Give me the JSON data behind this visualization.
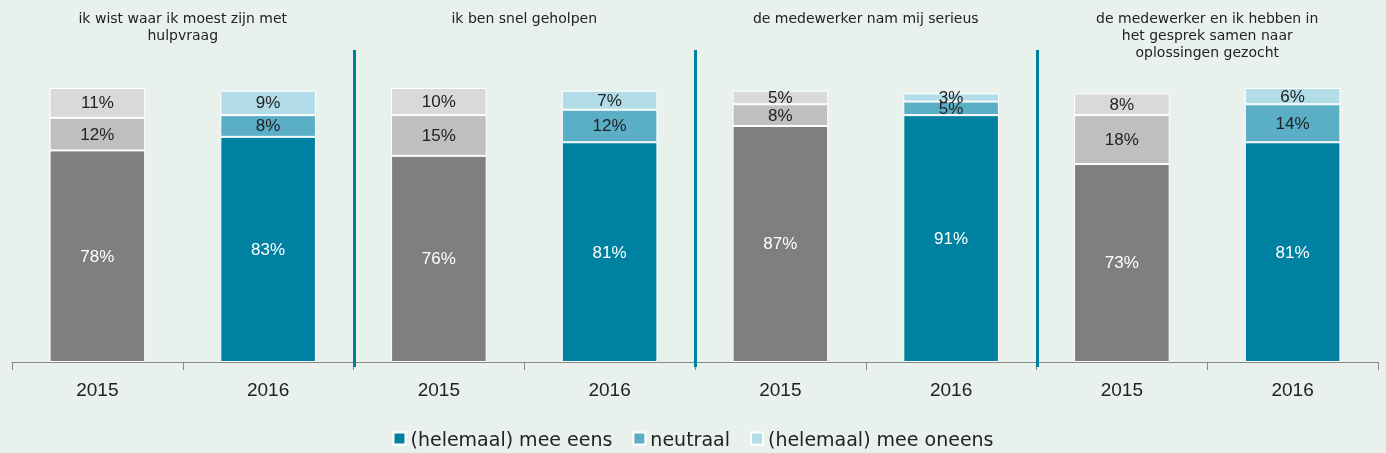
{
  "chart_data": {
    "type": "bar",
    "stacked": true,
    "legend": "bottom",
    "categories": [
      "2015",
      "2016",
      "2015",
      "2016",
      "2015",
      "2016",
      "2015",
      "2016"
    ],
    "series": [
      {
        "name": "(helemaal) mee eens",
        "color": "#0081a1",
        "colors": [
          "#7f7f7f",
          "#0081a1",
          "#7f7f7f",
          "#0081a1",
          "#7f7f7f",
          "#0081a1",
          "#7f7f7f",
          "#0081a1"
        ],
        "values": [
          78,
          83,
          76,
          81,
          87,
          91,
          73,
          81
        ],
        "value_labels": [
          "78%",
          "83%",
          "76%",
          "81%",
          "87%",
          "91%",
          "73%",
          "81%"
        ]
      },
      {
        "name": "neutraal",
        "color": "#5aafc6",
        "colors": [
          "#bfbfbf",
          "#5aafc6",
          "#bfbfbf",
          "#5aafc6",
          "#bfbfbf",
          "#5aafc6",
          "#bfbfbf",
          "#5aafc6"
        ],
        "values": [
          12,
          8,
          15,
          12,
          8,
          5,
          18,
          14
        ],
        "value_labels": [
          "12%",
          "8%",
          "15%",
          "12%",
          "8%",
          "5%",
          "18%",
          "14%"
        ]
      },
      {
        "name": "(helemaal) mee oneens",
        "color": "#b2dce8",
        "colors": [
          "#d9d9d9",
          "#b2dce8",
          "#d9d9d9",
          "#b2dce8",
          "#d9d9d9",
          "#b2dce8",
          "#d9d9d9",
          "#b2dce8"
        ],
        "values": [
          11,
          9,
          10,
          7,
          5,
          3,
          8,
          6
        ],
        "value_labels": [
          "11%",
          "9%",
          "10%",
          "7%",
          "5%",
          "3%",
          "8%",
          "6%"
        ]
      }
    ],
    "annotations": [
      "ik wist waar ik moest zijn met hulpvraag",
      "ik ben snel geholpen",
      "de medewerker nam mij serieus",
      "de medewerker en ik hebben in het gesprek samen naar oplossingen gezocht"
    ]
  }
}
